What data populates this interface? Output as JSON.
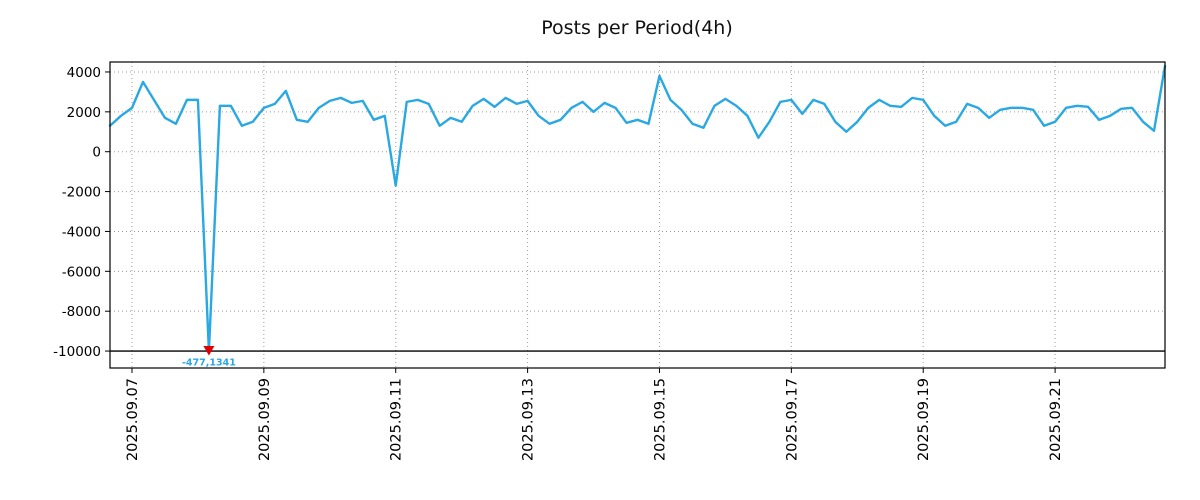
{
  "chart_data": {
    "type": "line",
    "title": "Posts per Period(4h)",
    "period_hours": 4,
    "line_color": "#29a8e2",
    "grid_color": "#9a9a9a",
    "axis_color": "#000000",
    "marker_color": "#e00000",
    "annotation_text_color": "#29a8e2",
    "grid": true,
    "legend": "none",
    "ylim": [
      -10850,
      4500
    ],
    "y_ticks": [
      4000,
      2000,
      0,
      -2000,
      -4000,
      -6000,
      -8000,
      -10000
    ],
    "baseline_solid_line_y": -10000,
    "x_tick_labels": [
      "2025.09.07",
      "2025.09.09",
      "2025.09.11",
      "2025.09.13",
      "2025.09.15",
      "2025.09.17",
      "2025.09.19",
      "2025.09.21"
    ],
    "x_tick_indices": [
      2,
      14,
      26,
      38,
      50,
      62,
      74,
      86
    ],
    "annotation": {
      "index": 9,
      "plotted_value": -10000,
      "label": "-477,1341",
      "marker": "triangle-down"
    },
    "series": [
      {
        "name": "posts",
        "values": [
          1300,
          1800,
          2200,
          3500,
          2600,
          1700,
          1400,
          2600,
          2600,
          -10000,
          2300,
          2300,
          1300,
          1500,
          2200,
          2400,
          3050,
          1600,
          1500,
          2200,
          2550,
          2700,
          2450,
          2550,
          1600,
          1800,
          -1700,
          2500,
          2600,
          2400,
          1300,
          1700,
          1500,
          2300,
          2650,
          2250,
          2700,
          2400,
          2550,
          1800,
          1400,
          1600,
          2200,
          2500,
          2000,
          2450,
          2200,
          1450,
          1600,
          1400,
          3800,
          2600,
          2100,
          1400,
          1200,
          2300,
          2650,
          2300,
          1800,
          700,
          1500,
          2500,
          2600,
          1900,
          2600,
          2400,
          1500,
          1000,
          1500,
          2200,
          2600,
          2300,
          2250,
          2700,
          2600,
          1800,
          1300,
          1500,
          2400,
          2200,
          1700,
          2100,
          2200,
          2200,
          2100,
          1300,
          1500,
          2200,
          2300,
          2250,
          1600,
          1800,
          2150,
          2200,
          1500,
          1050,
          4300
        ]
      }
    ]
  }
}
